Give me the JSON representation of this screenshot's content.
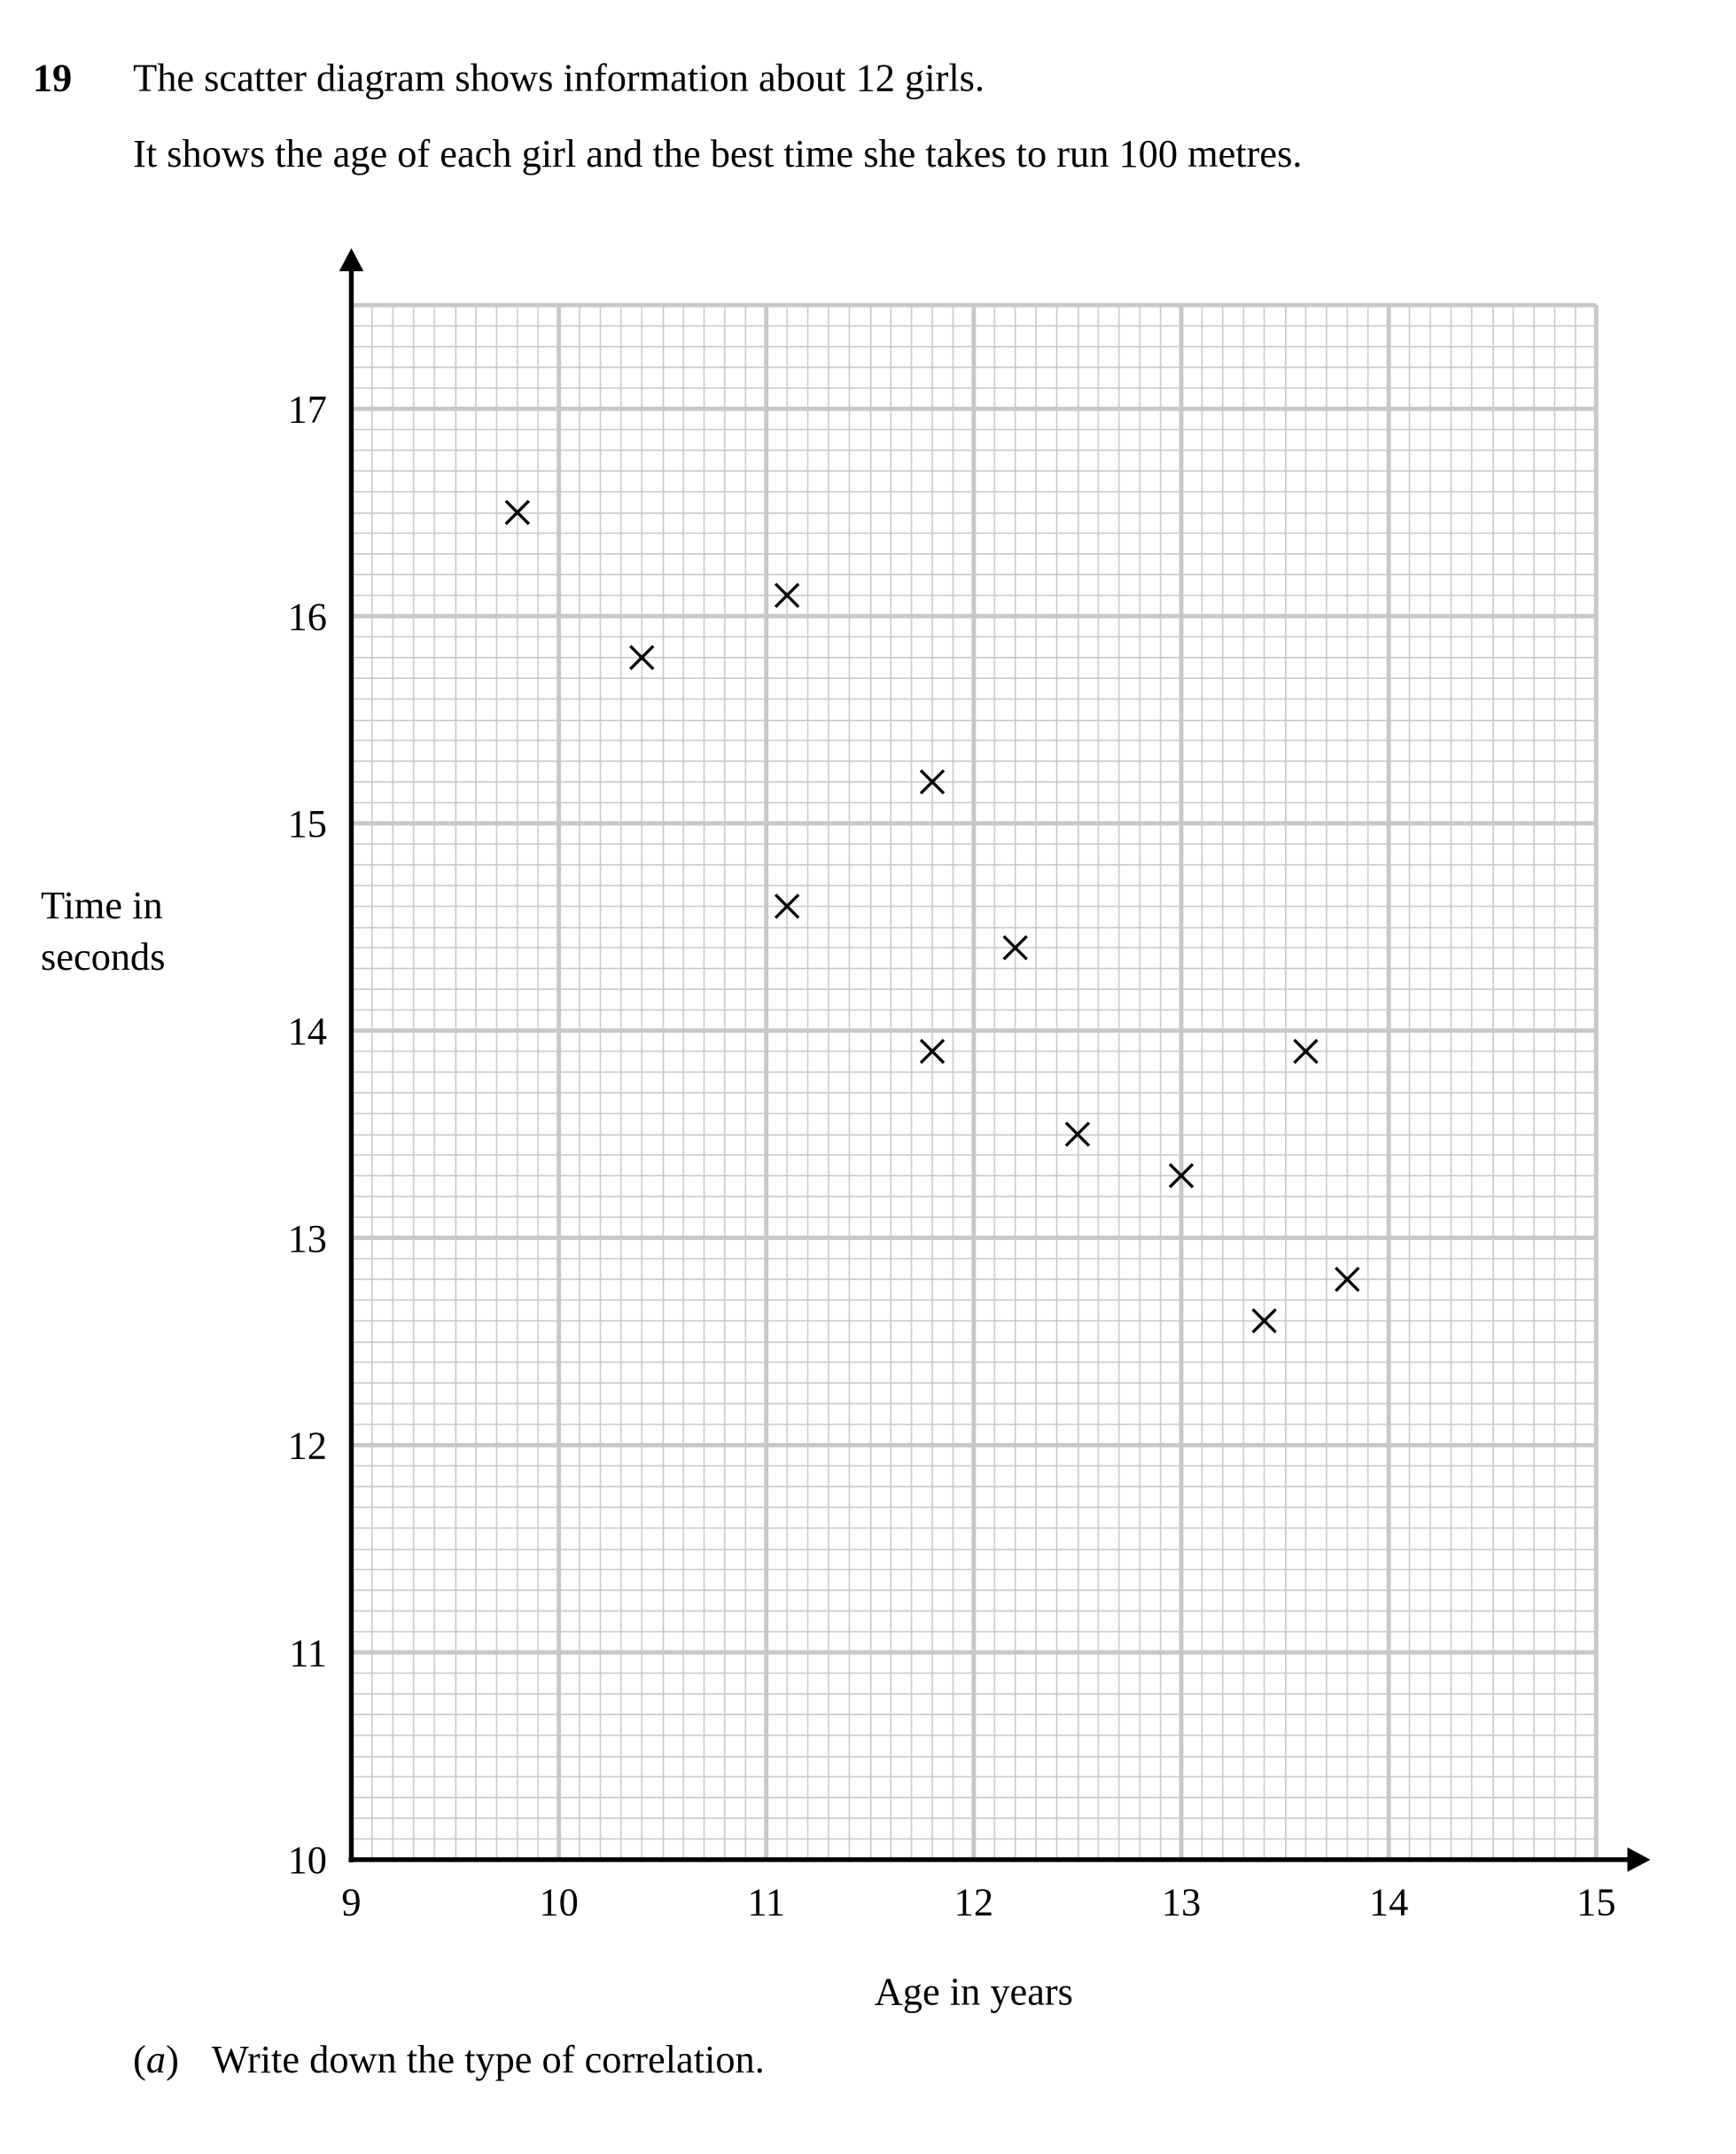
{
  "question_number": "19",
  "intro": [
    "The scatter diagram shows information about 12 girls.",
    "It shows the age of each girl and the best time she takes to run 100 metres."
  ],
  "chart_data": {
    "type": "scatter",
    "x_label": "Age in years",
    "y_label": [
      "Time in",
      "seconds"
    ],
    "x": [
      9.8,
      10.4,
      11.1,
      11.8,
      11.1,
      12.2,
      11.8,
      13.6,
      12.5,
      13.0,
      13.4,
      13.8
    ],
    "values": [
      16.5,
      15.8,
      16.1,
      15.2,
      14.6,
      14.4,
      13.9,
      13.9,
      13.5,
      13.3,
      12.6,
      12.8
    ],
    "color": "#000000",
    "xlim": [
      9,
      15
    ],
    "ylim": [
      10,
      17.5
    ],
    "xticks": [
      9,
      10,
      11,
      12,
      13,
      14,
      15
    ],
    "yticks": [
      10,
      11,
      12,
      13,
      14,
      15,
      16,
      17
    ],
    "grid": true
  },
  "part_a": {
    "label": "a",
    "text": "Write down the type of correlation."
  }
}
